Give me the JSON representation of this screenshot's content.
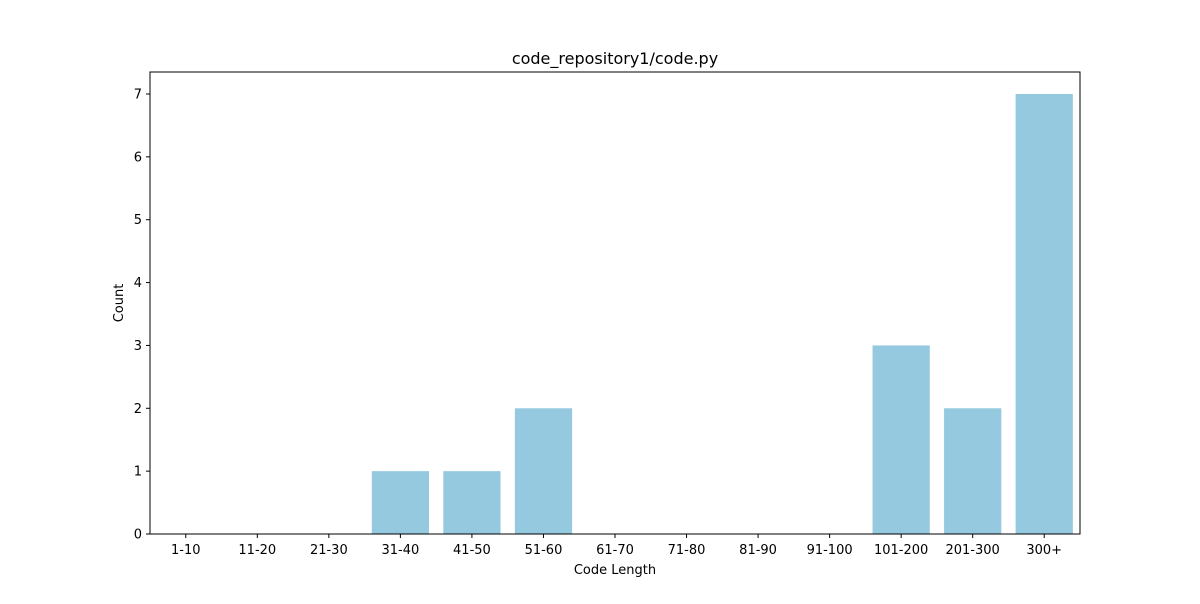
{
  "chart_data": {
    "type": "bar",
    "title": "code_repository1/code.py",
    "xlabel": "Code Length",
    "ylabel": "Count",
    "categories": [
      "1-10",
      "11-20",
      "21-30",
      "31-40",
      "41-50",
      "51-60",
      "61-70",
      "71-80",
      "81-90",
      "91-100",
      "101-200",
      "201-300",
      "300+"
    ],
    "values": [
      0,
      0,
      0,
      1,
      1,
      2,
      0,
      0,
      0,
      0,
      3,
      2,
      7
    ],
    "ylim": [
      0,
      7.35
    ],
    "yticks": [
      0,
      1,
      2,
      3,
      4,
      5,
      6,
      7
    ],
    "grid": false,
    "legend": "none",
    "bar_color": "#94c9e0"
  }
}
